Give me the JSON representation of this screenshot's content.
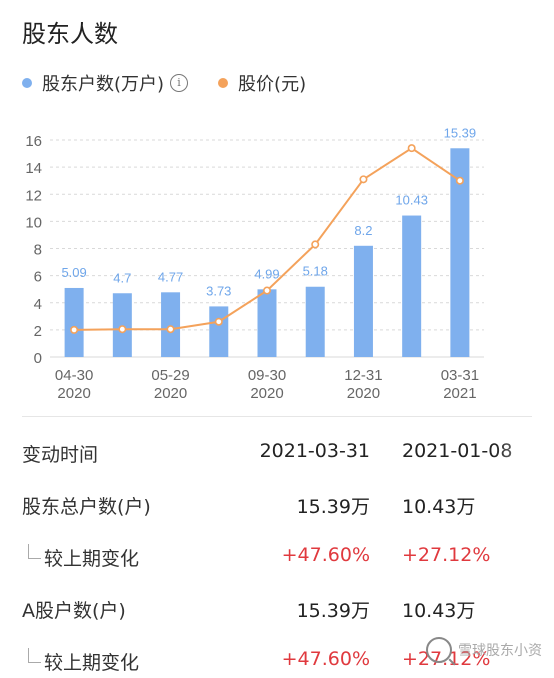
{
  "title": "股东人数",
  "legend": {
    "holders_label": "股东户数(万户)",
    "info_icon": "i",
    "price_label": "股价(元)",
    "holders_color": "#7fb0ee",
    "price_color": "#f4a25b"
  },
  "chart_data": {
    "type": "bar",
    "title": "",
    "xlabel": "",
    "ylabel": "",
    "ylim": [
      0,
      16
    ],
    "yticks": [
      0,
      2,
      4,
      6,
      8,
      10,
      12,
      14,
      16
    ],
    "x_tick_labels": [
      {
        "date": "04-30",
        "year": "2020",
        "index": 0
      },
      {
        "date": "05-29",
        "year": "2020",
        "index": 2
      },
      {
        "date": "09-30",
        "year": "2020",
        "index": 4
      },
      {
        "date": "12-31",
        "year": "2020",
        "index": 6
      },
      {
        "date": "03-31",
        "year": "2021",
        "index": 8
      }
    ],
    "series": [
      {
        "name": "股东户数(万户)",
        "type": "bar",
        "values": [
          5.09,
          4.7,
          4.77,
          3.73,
          4.99,
          5.18,
          8.2,
          10.43,
          15.39
        ],
        "labels": [
          "5.09",
          "4.7",
          "4.77",
          "3.73",
          "4.99",
          "5.18",
          "8.2",
          "10.43",
          "15.39"
        ]
      },
      {
        "name": "股价(元)",
        "type": "line",
        "values": [
          2.0,
          2.05,
          2.05,
          2.6,
          4.9,
          8.3,
          13.1,
          15.4,
          13.0
        ]
      }
    ],
    "grid": true
  },
  "table": {
    "header": {
      "label": "变动时间",
      "v1": "2021-03-31",
      "v2": "2021-01-08"
    },
    "rows": [
      {
        "label": "股东总户数(户)",
        "v1": "15.39万",
        "v2": "10.43万"
      },
      {
        "label": "较上期变化",
        "v1": "+47.60%",
        "v2": "+27.12%"
      },
      {
        "label": "A股户数(户)",
        "v1": "15.39万",
        "v2": "10.43万"
      },
      {
        "label": "较上期变化",
        "v1": "+47.60%",
        "v2": "+27.12%"
      }
    ]
  },
  "watermark": "雪球股东小资"
}
